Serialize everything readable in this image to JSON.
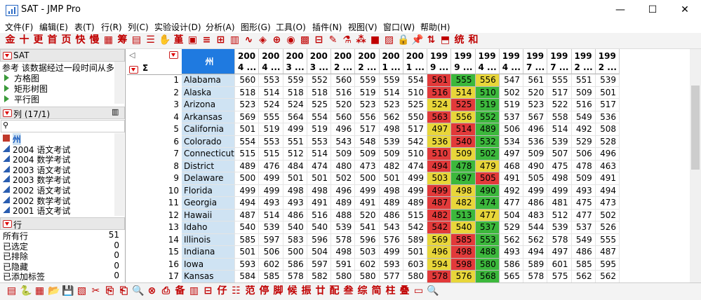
{
  "window": {
    "title": "SAT - JMP Pro",
    "minimize": "—",
    "maximize": "☐",
    "close": "✕"
  },
  "menu": [
    "文件(F)",
    "编辑(E)",
    "表(T)",
    "行(R)",
    "列(C)",
    "实验设计(D)",
    "分析(A)",
    "图形(G)",
    "工具(O)",
    "插件(N)",
    "视图(V)",
    "窗口(W)",
    "帮助(H)"
  ],
  "toolbar_top": [
    {
      "glyph": "金",
      "name": "gold-icon"
    },
    {
      "glyph": "十",
      "name": "ten-icon"
    },
    {
      "glyph": "更",
      "name": "update-icon"
    },
    {
      "glyph": "首",
      "name": "first-icon"
    },
    {
      "glyph": "页",
      "name": "page-icon"
    },
    {
      "glyph": "快",
      "name": "fast-icon"
    },
    {
      "glyph": "慢",
      "name": "slow-icon"
    },
    {
      "glyph": "▦",
      "name": "table-icon"
    },
    {
      "glyph": "筹",
      "name": "chip-icon"
    },
    {
      "glyph": "▤",
      "name": "grid-icon"
    },
    {
      "glyph": "☰",
      "name": "list-icon"
    },
    {
      "glyph": "✋",
      "name": "hand-icon"
    },
    {
      "glyph": "堇",
      "name": "violet-icon"
    },
    {
      "glyph": "▣",
      "name": "layout-icon"
    },
    {
      "glyph": "≡",
      "name": "align-icon"
    },
    {
      "glyph": "⊞",
      "name": "distribution-icon"
    },
    {
      "glyph": "▥",
      "name": "fit-icon"
    },
    {
      "glyph": "∿",
      "name": "curve-icon"
    },
    {
      "glyph": "◈",
      "name": "multivariate-icon"
    },
    {
      "glyph": "⊕",
      "name": "cross-icon"
    },
    {
      "glyph": "◉",
      "name": "cluster-icon"
    },
    {
      "glyph": "▩",
      "name": "matrix-icon"
    },
    {
      "glyph": "⊟",
      "name": "bars-icon"
    },
    {
      "glyph": "✎",
      "name": "edit-icon"
    },
    {
      "glyph": "⚗",
      "name": "flask-icon"
    },
    {
      "glyph": "⁂",
      "name": "scatter-icon"
    },
    {
      "glyph": "■",
      "name": "color-icon"
    },
    {
      "glyph": "▨",
      "name": "pattern-icon"
    },
    {
      "glyph": "🔒",
      "name": "lock-icon"
    },
    {
      "glyph": "📌",
      "name": "pin-icon"
    },
    {
      "glyph": "⇅",
      "name": "sort-icon"
    },
    {
      "glyph": "⬒",
      "name": "split-icon"
    },
    {
      "glyph": "统",
      "name": "stat-icon"
    },
    {
      "glyph": "和",
      "name": "sum-icon"
    }
  ],
  "left_panel": {
    "table_name": "SAT",
    "description": "参考 该数据经过一段时间从多",
    "scripts": [
      "方格图",
      "矩形树图",
      "平行图"
    ],
    "columns_header": "列 (17/1)",
    "search_placeholder": "",
    "columns": [
      "州",
      "2004 语文考试",
      "2004 数学考试",
      "2003 语文考试",
      "2003 数学考试",
      "2002 语文考试",
      "2002 数学考试",
      "2001 语文考试"
    ],
    "rows_header": "行",
    "row_stats": [
      {
        "label": "所有行",
        "value": "51"
      },
      {
        "label": "已选定",
        "value": "0"
      },
      {
        "label": "已排除",
        "value": "0"
      },
      {
        "label": "已隐藏",
        "value": "0"
      },
      {
        "label": "已添加标签",
        "value": "0"
      }
    ]
  },
  "grid": {
    "sigma": "Σ",
    "state_header": "州",
    "headers": [
      [
        "200",
        "4 ..."
      ],
      [
        "200",
        "4 ..."
      ],
      [
        "200",
        "3 ..."
      ],
      [
        "200",
        "3 ..."
      ],
      [
        "200",
        "2 ..."
      ],
      [
        "200",
        "2 ..."
      ],
      [
        "200",
        "1 ..."
      ],
      [
        "200",
        "1 ..."
      ],
      [
        "199",
        "9 ..."
      ],
      [
        "199",
        "9 ..."
      ],
      [
        "199",
        "4 ..."
      ],
      [
        "199",
        "4 ..."
      ],
      [
        "199",
        "7 ..."
      ],
      [
        "199",
        "7 ..."
      ],
      [
        "199",
        "2 ..."
      ],
      [
        "199",
        "2 ..."
      ]
    ],
    "rows": [
      {
        "n": "1",
        "state": "Alabama",
        "v": [
          "560",
          "553",
          "559",
          "552",
          "560",
          "559",
          "559",
          "554",
          "561",
          "555",
          "556",
          "547",
          "561",
          "555",
          "551",
          "539"
        ]
      },
      {
        "n": "2",
        "state": "Alaska",
        "v": [
          "518",
          "514",
          "518",
          "518",
          "516",
          "519",
          "514",
          "510",
          "516",
          "514",
          "510",
          "502",
          "520",
          "517",
          "509",
          "501"
        ]
      },
      {
        "n": "3",
        "state": "Arizona",
        "v": [
          "523",
          "524",
          "524",
          "525",
          "520",
          "523",
          "523",
          "525",
          "524",
          "525",
          "519",
          "519",
          "523",
          "522",
          "516",
          "517"
        ]
      },
      {
        "n": "4",
        "state": "Arkansas",
        "v": [
          "569",
          "555",
          "564",
          "554",
          "560",
          "556",
          "562",
          "550",
          "563",
          "556",
          "552",
          "537",
          "567",
          "558",
          "549",
          "536"
        ]
      },
      {
        "n": "5",
        "state": "California",
        "v": [
          "501",
          "519",
          "499",
          "519",
          "496",
          "517",
          "498",
          "517",
          "497",
          "514",
          "489",
          "506",
          "496",
          "514",
          "492",
          "508"
        ]
      },
      {
        "n": "6",
        "state": "Colorado",
        "v": [
          "554",
          "553",
          "551",
          "553",
          "543",
          "548",
          "539",
          "542",
          "536",
          "540",
          "532",
          "534",
          "536",
          "539",
          "529",
          "528"
        ]
      },
      {
        "n": "7",
        "state": "Connecticut",
        "v": [
          "515",
          "515",
          "512",
          "514",
          "509",
          "509",
          "509",
          "510",
          "510",
          "509",
          "502",
          "497",
          "509",
          "507",
          "506",
          "496"
        ]
      },
      {
        "n": "8",
        "state": "District of...",
        "v": [
          "489",
          "476",
          "484",
          "474",
          "480",
          "473",
          "482",
          "474",
          "494",
          "478",
          "479",
          "468",
          "490",
          "475",
          "478",
          "463"
        ]
      },
      {
        "n": "9",
        "state": "Delaware",
        "v": [
          "500",
          "499",
          "501",
          "501",
          "502",
          "500",
          "501",
          "499",
          "503",
          "497",
          "505",
          "491",
          "505",
          "498",
          "509",
          "491"
        ]
      },
      {
        "n": "10",
        "state": "Florida",
        "v": [
          "499",
          "499",
          "498",
          "498",
          "496",
          "499",
          "498",
          "499",
          "499",
          "498",
          "490",
          "492",
          "499",
          "499",
          "493",
          "494"
        ]
      },
      {
        "n": "11",
        "state": "Georgia",
        "v": [
          "494",
          "493",
          "493",
          "491",
          "489",
          "491",
          "489",
          "489",
          "487",
          "482",
          "474",
          "477",
          "486",
          "481",
          "475",
          "473"
        ]
      },
      {
        "n": "12",
        "state": "Hawaii",
        "v": [
          "487",
          "514",
          "486",
          "516",
          "488",
          "520",
          "486",
          "515",
          "482",
          "513",
          "477",
          "504",
          "483",
          "512",
          "477",
          "502"
        ]
      },
      {
        "n": "13",
        "state": "Idaho",
        "v": [
          "540",
          "539",
          "540",
          "540",
          "539",
          "541",
          "543",
          "542",
          "542",
          "540",
          "537",
          "529",
          "544",
          "539",
          "537",
          "526"
        ]
      },
      {
        "n": "14",
        "state": "Illinois",
        "v": [
          "585",
          "597",
          "583",
          "596",
          "578",
          "596",
          "576",
          "589",
          "569",
          "585",
          "553",
          "562",
          "562",
          "578",
          "549",
          "555"
        ]
      },
      {
        "n": "15",
        "state": "Indiana",
        "v": [
          "501",
          "506",
          "500",
          "504",
          "498",
          "503",
          "499",
          "501",
          "496",
          "498",
          "488",
          "493",
          "494",
          "497",
          "486",
          "487"
        ]
      },
      {
        "n": "16",
        "state": "Iowa",
        "v": [
          "593",
          "602",
          "586",
          "597",
          "591",
          "602",
          "593",
          "603",
          "594",
          "598",
          "580",
          "586",
          "589",
          "601",
          "585",
          "595"
        ]
      },
      {
        "n": "17",
        "state": "Kansas",
        "v": [
          "584",
          "585",
          "578",
          "582",
          "580",
          "580",
          "577",
          "580",
          "578",
          "576",
          "568",
          "565",
          "578",
          "575",
          "562",
          "562"
        ]
      }
    ],
    "heat": {
      "colors": {
        "red": "#e23a3a",
        "yellow": "#e8d63a",
        "green": "#3cb83c"
      },
      "columns": [
        8,
        9,
        10
      ],
      "pattern": [
        [
          "red",
          "green",
          "yellow"
        ],
        [
          "red",
          "yellow",
          "green"
        ],
        [
          "yellow",
          "red",
          "green"
        ],
        [
          "red",
          "yellow",
          "green"
        ],
        [
          "yellow",
          "red",
          "green"
        ],
        [
          "yellow",
          "red",
          "green"
        ],
        [
          "red",
          "yellow",
          "green"
        ],
        [
          "red",
          "green",
          "yellow"
        ],
        [
          "yellow",
          "green",
          "red"
        ],
        [
          "red",
          "yellow",
          "green"
        ],
        [
          "red",
          "yellow",
          "green"
        ],
        [
          "red",
          "green",
          "yellow"
        ],
        [
          "red",
          "yellow",
          "green"
        ],
        [
          "yellow",
          "red",
          "green"
        ],
        [
          "yellow",
          "red",
          "green"
        ],
        [
          "yellow",
          "red",
          "green"
        ],
        [
          "red",
          "yellow",
          "green"
        ]
      ]
    }
  },
  "bottom_toolbar": [
    {
      "glyph": "▤",
      "name": "new-table-icon"
    },
    {
      "glyph": "🐍",
      "name": "python-icon"
    },
    {
      "glyph": "▦",
      "name": "data-icon"
    },
    {
      "glyph": "📂",
      "name": "open-icon"
    },
    {
      "glyph": "💾",
      "name": "save-icon"
    },
    {
      "glyph": "▧",
      "name": "print-icon"
    },
    {
      "glyph": "✂",
      "name": "cut-icon"
    },
    {
      "glyph": "⎘",
      "name": "copy-icon"
    },
    {
      "glyph": "⎗",
      "name": "paste-icon"
    },
    {
      "glyph": "🔍",
      "name": "find-icon"
    },
    {
      "glyph": "⊗",
      "name": "close-all-icon"
    },
    {
      "glyph": "⎙",
      "name": "export-icon"
    },
    {
      "glyph": "备",
      "name": "backup-icon"
    },
    {
      "glyph": "▥",
      "name": "chart-icon"
    },
    {
      "glyph": "⊟",
      "name": "subset-icon"
    },
    {
      "glyph": "仔",
      "name": "detail-icon"
    },
    {
      "glyph": "☷",
      "name": "layout-icon"
    },
    {
      "glyph": "范",
      "name": "range-icon"
    },
    {
      "glyph": "停",
      "name": "stop-icon"
    },
    {
      "glyph": "脚",
      "name": "script-icon"
    },
    {
      "glyph": "候",
      "name": "wait-icon"
    },
    {
      "glyph": "振",
      "name": "vibrate-icon"
    },
    {
      "glyph": "廿",
      "name": "twenty-icon"
    },
    {
      "glyph": "配",
      "name": "match-icon"
    },
    {
      "glyph": "叁",
      "name": "three-icon"
    },
    {
      "glyph": "综",
      "name": "summary-icon"
    },
    {
      "glyph": "简",
      "name": "simple-icon"
    },
    {
      "glyph": "柱",
      "name": "column-icon"
    },
    {
      "glyph": "叠",
      "name": "stack-icon"
    },
    {
      "glyph": "▭",
      "name": "window-icon"
    },
    {
      "glyph": "🔍",
      "name": "search-icon"
    }
  ]
}
